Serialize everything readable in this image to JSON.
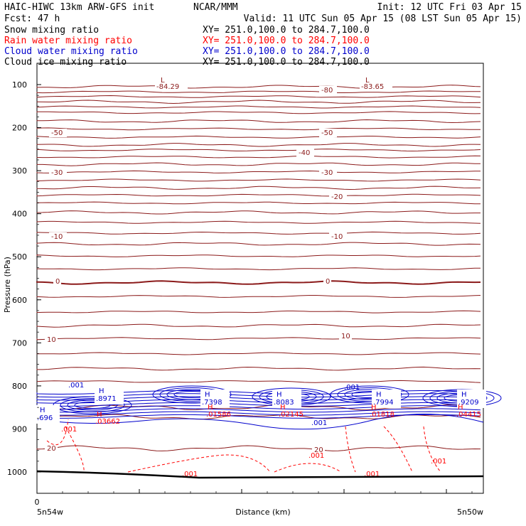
{
  "header": {
    "title": "HAIC-HIWC 13km ARW-GFS init",
    "center": "NCAR/MMM",
    "init": "Init: 12 UTC Fri 03 Apr 15",
    "fcst": "Fcst:    47 h",
    "valid": "Valid: 11 UTC Sun 05 Apr 15 (08 LST Sun 05 Apr 15)"
  },
  "fields": [
    {
      "name": "Snow mixing ratio",
      "xy": "XY= 251.0,100.0 to 284.7,100.0",
      "color": "#000000"
    },
    {
      "name": "Rain water mixing ratio",
      "xy": "XY= 251.0,100.0 to 284.7,100.0",
      "color": "#ff0000"
    },
    {
      "name": "Cloud water mixing ratio",
      "xy": "XY= 251.0,100.0 to 284.7,100.0",
      "color": "#0000cc"
    },
    {
      "name": "Cloud ice mixing ratio",
      "xy": "XY= 251.0,100.0 to 284.7,100.0",
      "color": "#000000"
    }
  ],
  "colors": {
    "temperature": "#8b1a1a",
    "cloud_water": "#0000cc",
    "rain_water": "#ff0000",
    "terrain": "#000000"
  },
  "chart_data": {
    "type": "line",
    "title": "",
    "xlabel": "Distance (km)",
    "ylabel": "Pressure (hPa)",
    "yticks": [
      "100",
      "200",
      "300",
      "400",
      "500",
      "600",
      "700",
      "800",
      "900",
      "1000"
    ],
    "ylim": [
      1040,
      70
    ],
    "y_scale": "pressure (linear)",
    "xticks_left": "0",
    "x_endpoints": [
      "5n54w",
      "5n50w"
    ],
    "temperature_contours": [
      {
        "label": "-50",
        "value": -50,
        "pressure": 185
      },
      {
        "label": "-40",
        "value": -40,
        "pressure": 252
      },
      {
        "label": "-30",
        "value": -30,
        "pressure": 303
      },
      {
        "label": "-20",
        "value": -20,
        "pressure": 375
      },
      {
        "label": "-10",
        "value": -10,
        "pressure": 470
      },
      {
        "label": "0",
        "value": 0,
        "pressure": 560
      },
      {
        "label": "10",
        "value": 10,
        "pressure": 690
      },
      {
        "label": "20",
        "value": 20,
        "pressure": 960
      },
      {
        "label": "-80",
        "value": -80,
        "pressure": 110
      }
    ],
    "min_labels": [
      {
        "label": "L",
        "value": "-84.29"
      },
      {
        "label": "L",
        "value": "-83.65"
      }
    ],
    "cloud_water_max": [
      {
        "label": "H",
        "value": ".8971"
      },
      {
        "label": "H",
        "value": ".7398"
      },
      {
        "label": "H",
        "value": ".8083"
      },
      {
        "label": "H",
        "value": ".7994"
      },
      {
        "label": "H",
        "value": ".9209"
      },
      {
        "label": "H",
        "value": ".696"
      }
    ],
    "rain_water_max": [
      {
        "label": "H",
        "value": ".03662"
      },
      {
        "label": "H",
        "value": ".01586"
      },
      {
        "label": "H",
        "value": ".02145"
      },
      {
        "label": "H",
        "value": ".01818"
      },
      {
        "label": "H",
        "value": ".04415"
      }
    ],
    "contour_labels": [
      ".001",
      ".001",
      ".001",
      ".001",
      ".001",
      ".001",
      ".001",
      ".001"
    ],
    "other_labels": [
      "-30",
      "-40",
      "-50",
      "-30",
      "-20",
      "-10",
      "10",
      "0"
    ]
  }
}
